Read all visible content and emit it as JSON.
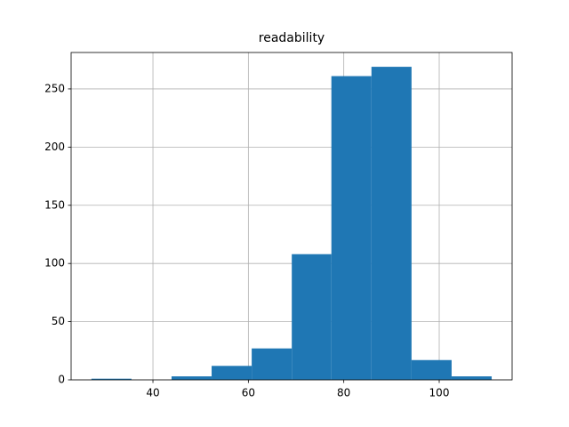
{
  "chart_data": {
    "type": "histogram",
    "title": "readability",
    "bins": [
      27.1,
      35.5,
      43.9,
      52.3,
      60.7,
      69.1,
      77.4,
      85.8,
      94.2,
      102.6,
      111.0
    ],
    "values": [
      1,
      0,
      3,
      12,
      27,
      108,
      261,
      269,
      17,
      3
    ],
    "color": "#1f77b4",
    "xlim": [
      22.85,
      115.28
    ],
    "ylim": [
      0,
      281.3
    ],
    "xticks": [
      40,
      60,
      80,
      100
    ],
    "yticks": [
      0,
      50,
      100,
      150,
      200,
      250
    ],
    "grid": true
  }
}
